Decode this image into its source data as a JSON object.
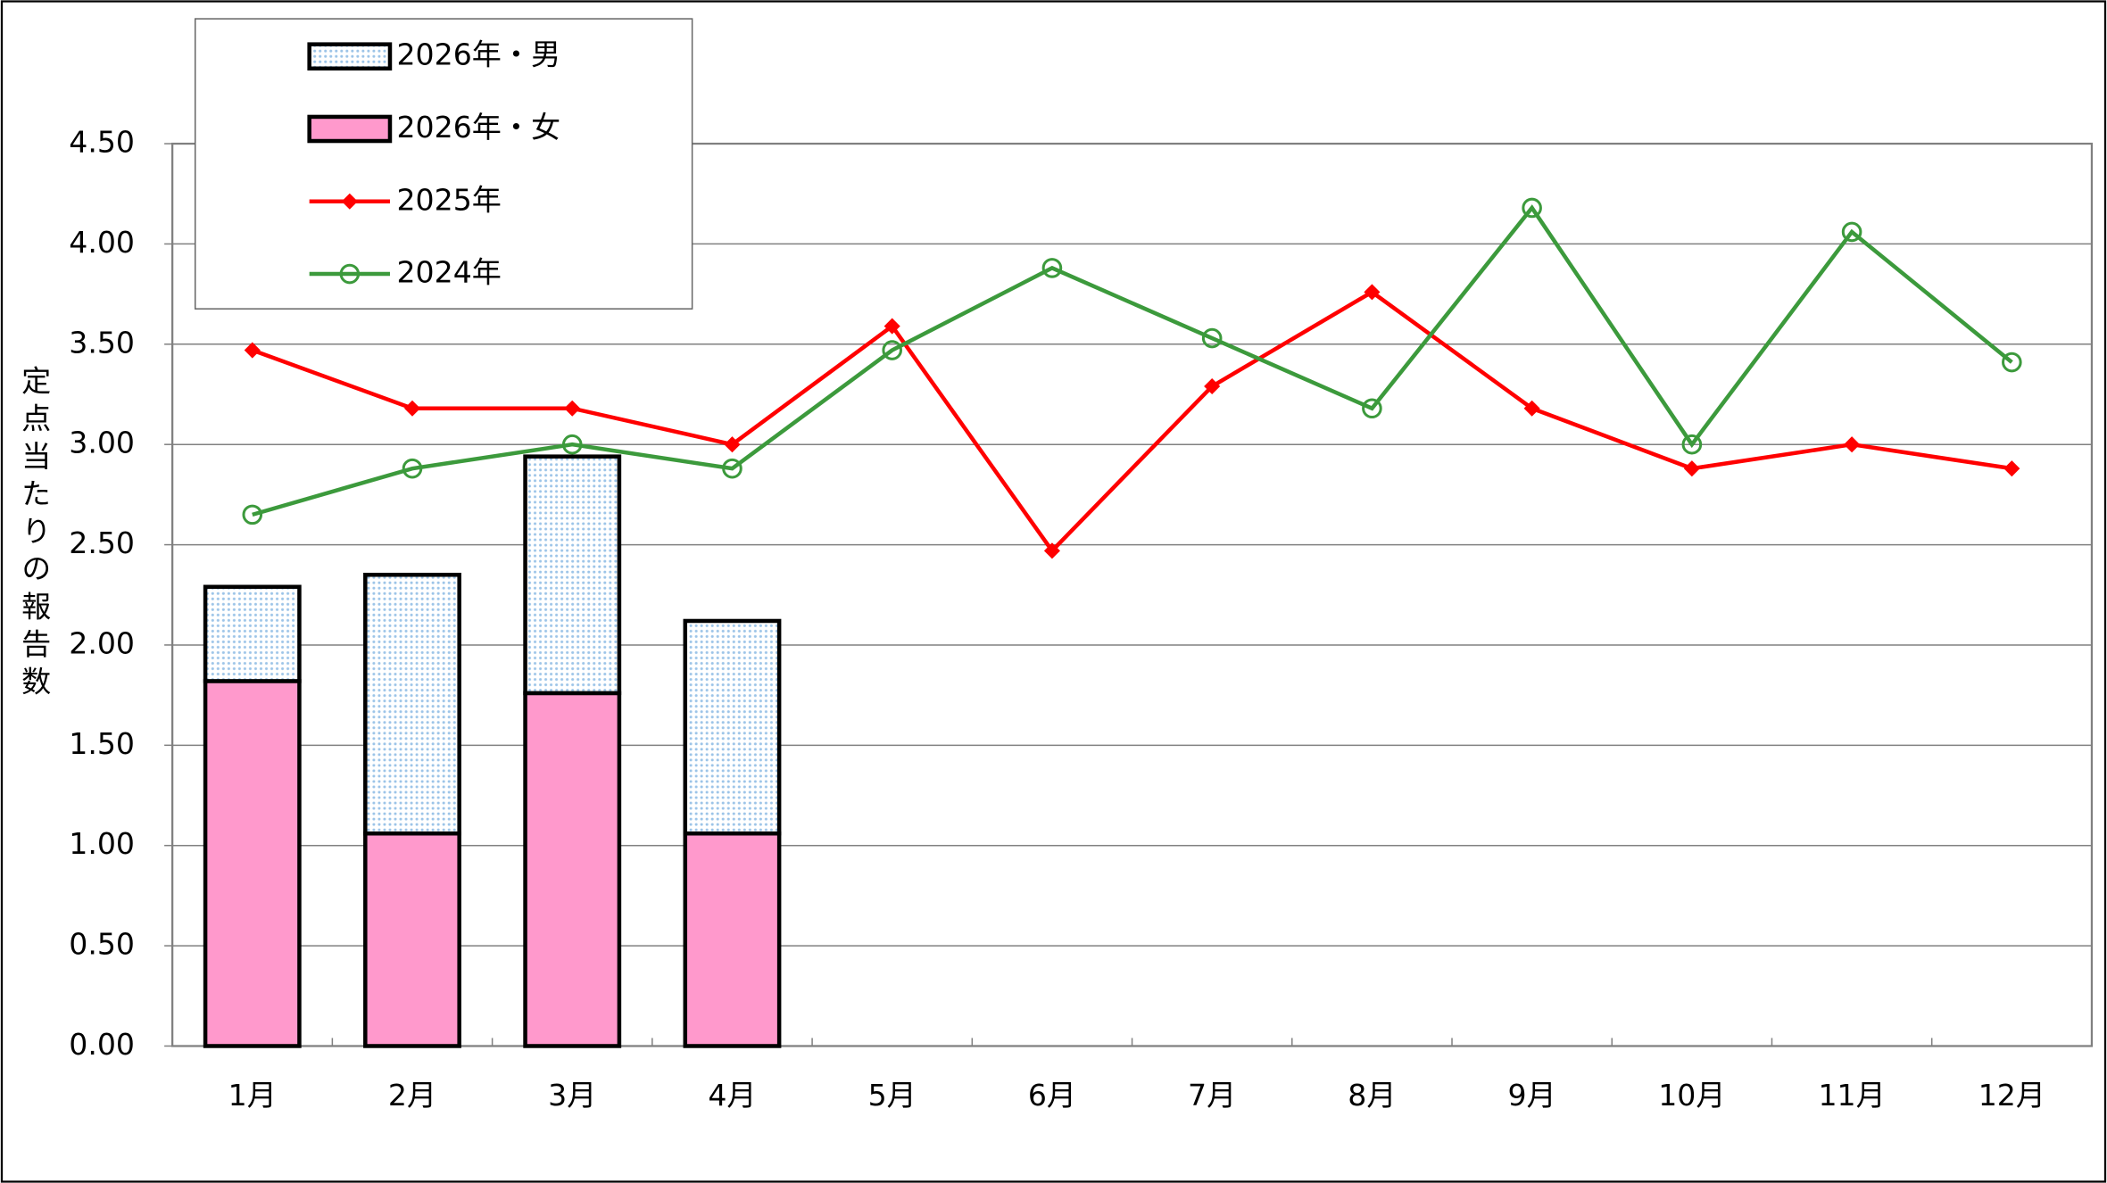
{
  "chart_data": {
    "type": "bar-line",
    "y_label": "定点当たりの報告数",
    "categories": [
      "1月",
      "2月",
      "3月",
      "4月",
      "5月",
      "6月",
      "7月",
      "8月",
      "9月",
      "10月",
      "11月",
      "12月"
    ],
    "series": [
      {
        "name": "2026年・男",
        "type": "bar",
        "color": "#bcd8f0",
        "values": [
          0.47,
          1.29,
          1.18,
          1.06,
          null,
          null,
          null,
          null,
          null,
          null,
          null,
          null
        ]
      },
      {
        "name": "2026年・女",
        "type": "bar",
        "color": "#ff99cc",
        "values": [
          1.82,
          1.06,
          1.76,
          1.06,
          null,
          null,
          null,
          null,
          null,
          null,
          null,
          null
        ]
      },
      {
        "name": "2025年",
        "type": "line",
        "marker": "diamond",
        "color": "#ff0000",
        "values": [
          3.47,
          3.18,
          3.18,
          3.0,
          3.59,
          2.47,
          3.29,
          3.76,
          3.18,
          2.88,
          3.0,
          2.88
        ]
      },
      {
        "name": "2024年",
        "type": "line",
        "marker": "circle",
        "color": "#3c9a3c",
        "values": [
          2.65,
          2.88,
          3.0,
          2.88,
          3.47,
          3.88,
          3.53,
          3.18,
          4.18,
          3.0,
          4.06,
          3.41
        ]
      }
    ],
    "ylim": [
      0,
      4.5
    ],
    "yticks": [
      {
        "value": 0,
        "label": "0.00"
      },
      {
        "value": 0.5,
        "label": "0.50"
      },
      {
        "value": 1,
        "label": "1.00"
      },
      {
        "value": 1.5,
        "label": "1.50"
      },
      {
        "value": 2,
        "label": "2.00"
      },
      {
        "value": 2.5,
        "label": "2.50"
      },
      {
        "value": 3,
        "label": "3.00"
      },
      {
        "value": 3.5,
        "label": "3.50"
      },
      {
        "value": 4,
        "label": "4.00"
      },
      {
        "value": 4.5,
        "label": "4.50"
      }
    ],
    "grid": true
  }
}
